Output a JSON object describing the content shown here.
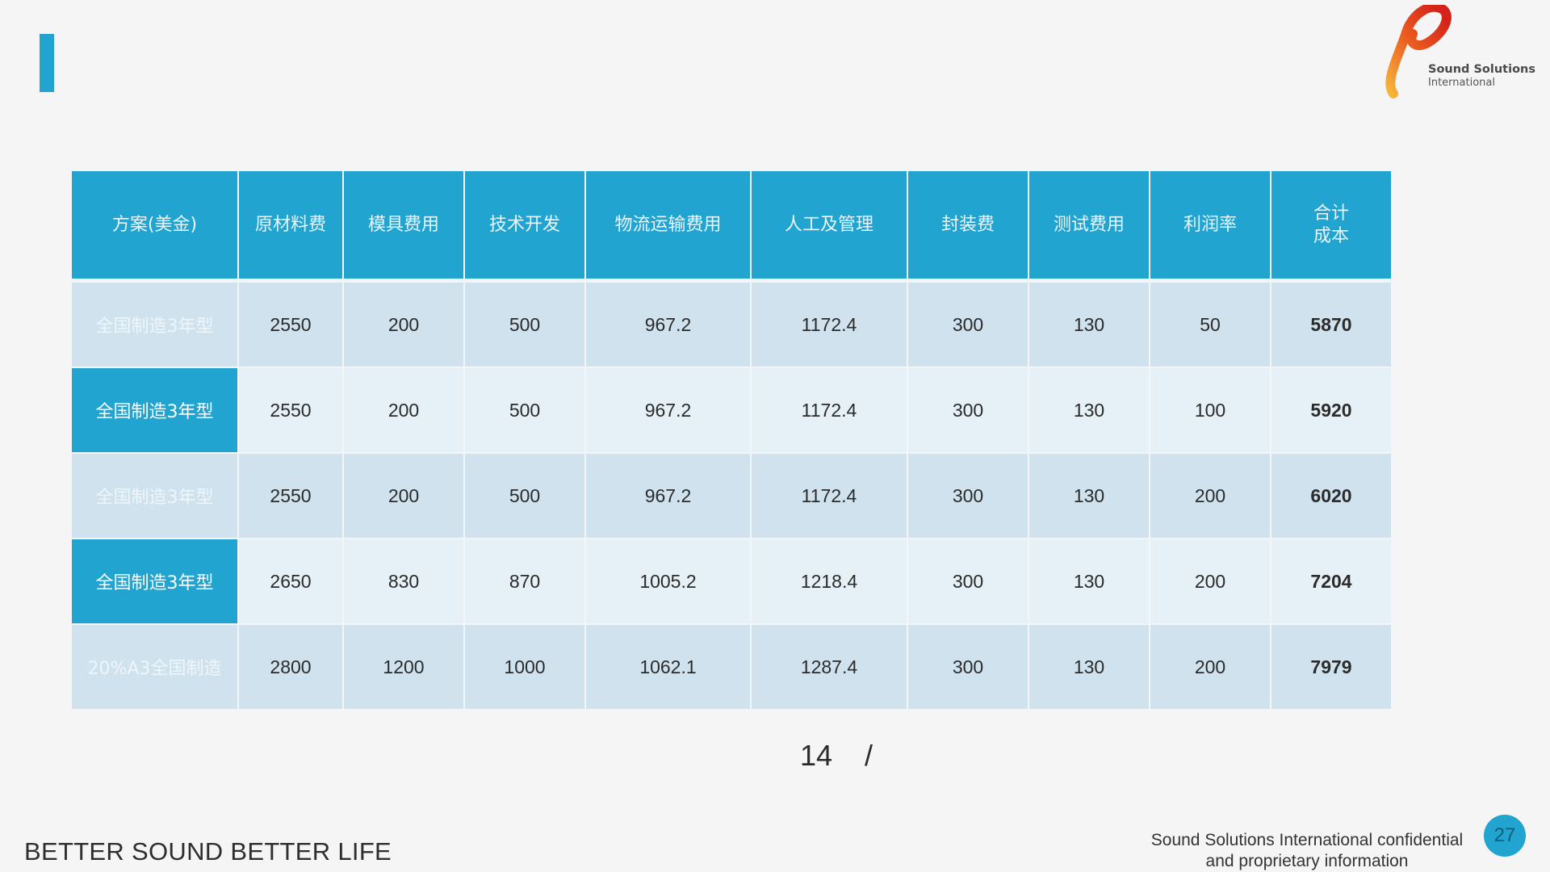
{
  "header": {
    "logo": {
      "brand_line1": "Sound Solutions",
      "brand_line2": "International",
      "colors": [
        "#f6b53b",
        "#ea5a1f",
        "#d4231a"
      ]
    },
    "accent_color": "#22a4d1"
  },
  "table": {
    "columns": [
      "方案(美金)",
      "原材料费",
      "模具费用",
      "技术开发",
      "物流运输费用",
      "人工及管理",
      "封装费",
      "测试费用",
      "利润率",
      "合计\n成本"
    ],
    "rows": [
      {
        "label": "全国制造3年型",
        "values": [
          "2550",
          "200",
          "500",
          "967.2",
          "1172.4",
          "300",
          "130",
          "50",
          "5870"
        ]
      },
      {
        "label": "全国制造3年型",
        "values": [
          "2550",
          "200",
          "500",
          "967.2",
          "1172.4",
          "300",
          "130",
          "100",
          "5920"
        ]
      },
      {
        "label": "全国制造3年型",
        "values": [
          "2550",
          "200",
          "500",
          "967.2",
          "1172.4",
          "300",
          "130",
          "200",
          "6020"
        ]
      },
      {
        "label": "全国制造3年型",
        "values": [
          "2650",
          "830",
          "870",
          "1005.2",
          "1218.4",
          "300",
          "130",
          "200",
          "7204"
        ]
      },
      {
        "label": "20%A3全国制造",
        "values": [
          "2800",
          "1200",
          "1000",
          "1062.1",
          "1287.4",
          "300",
          "130",
          "200",
          "7979"
        ]
      }
    ]
  },
  "page_indicator": "14    /",
  "footer": {
    "tagline": "BETTER SOUND BETTER LIFE",
    "confidential_line1": "Sound Solutions International confidential",
    "confidential_line2": "and proprietary information",
    "page_number": "27"
  }
}
